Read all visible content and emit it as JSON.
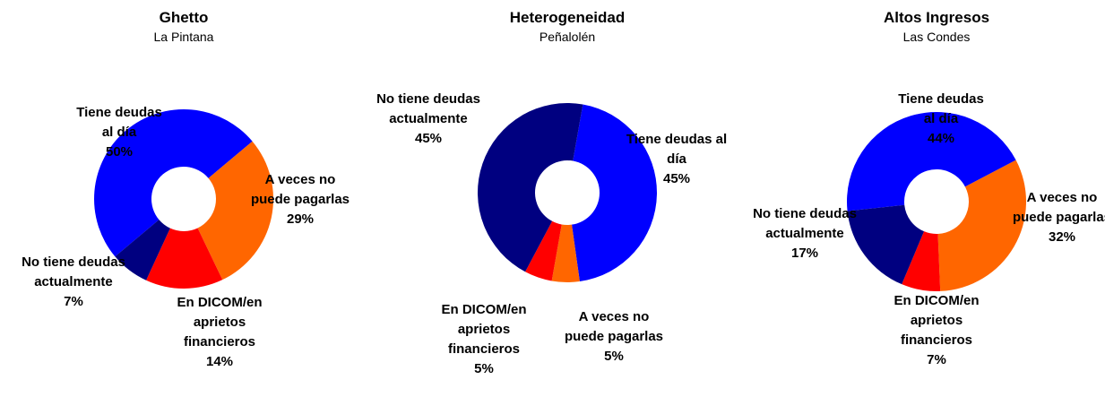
{
  "chart_data": [
    {
      "type": "pie",
      "title": "Ghetto",
      "subtitle": "La Pintana",
      "categories": [
        "Tiene deudas al día",
        "A veces no puede pagarlas",
        "En DICOM/en aprietos financieros",
        "No tiene deudas actualmente"
      ],
      "values": [
        50,
        29,
        14,
        7
      ],
      "value_labels": [
        "50%",
        "29%",
        "14%",
        "7%"
      ],
      "colors": [
        "#0000ff",
        "#ff6600",
        "#ff0000",
        "#000080"
      ]
    },
    {
      "type": "pie",
      "title": "Heterogeneidad",
      "subtitle": "Peñalolén",
      "categories": [
        "Tiene deudas al día",
        "A veces no puede pagarlas",
        "En DICOM/en aprietos financieros",
        "No tiene deudas actualmente"
      ],
      "values": [
        45,
        5,
        5,
        45
      ],
      "value_labels": [
        "45%",
        "5%",
        "5%",
        "45%"
      ],
      "colors": [
        "#0000ff",
        "#ff6600",
        "#ff0000",
        "#000080"
      ]
    },
    {
      "type": "pie",
      "title": "Altos Ingresos",
      "subtitle": "Las Condes",
      "categories": [
        "Tiene deudas al día",
        "A veces no puede pagarlas",
        "En DICOM/en aprietos financieros",
        "No tiene deudas actualmente"
      ],
      "values": [
        44,
        32,
        7,
        17
      ],
      "value_labels": [
        "44%",
        "32%",
        "7%",
        "17%"
      ],
      "colors": [
        "#0000ff",
        "#ff6600",
        "#ff0000",
        "#000080"
      ]
    }
  ]
}
